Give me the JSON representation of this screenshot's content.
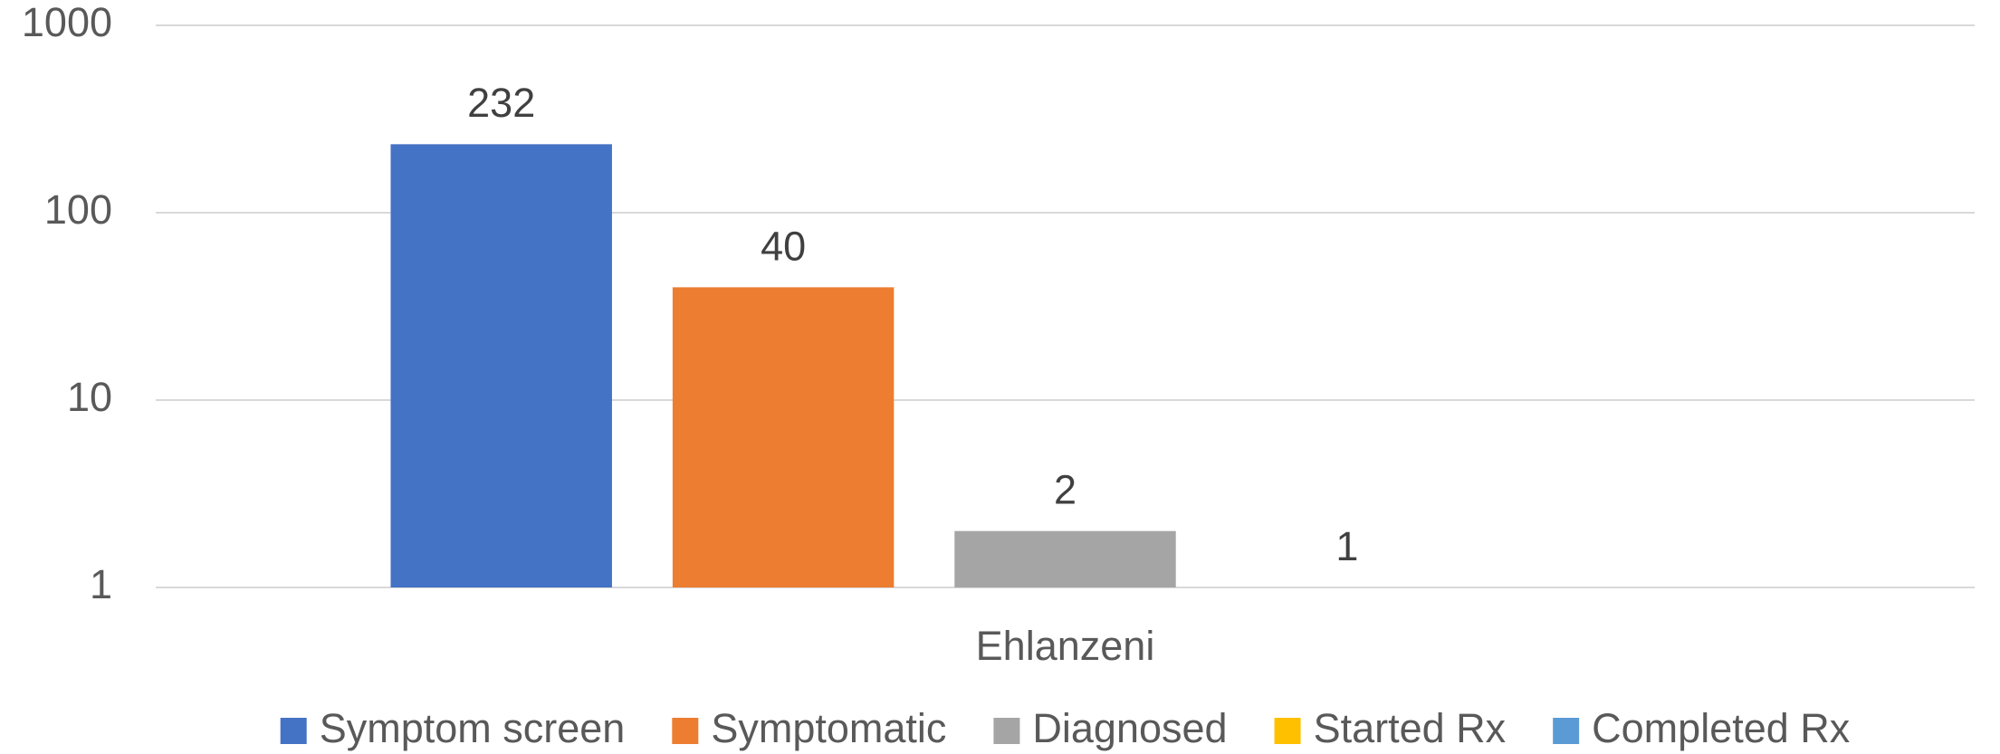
{
  "chart_data": {
    "type": "bar",
    "log_scale": true,
    "grid": true,
    "legend": "bottom",
    "categories": [
      "Ehlanzeni"
    ],
    "series": [
      {
        "name": "Symptom screen",
        "color": "#4472c4",
        "values": [
          232
        ]
      },
      {
        "name": "Symptomatic",
        "color": "#ed7d31",
        "values": [
          40
        ]
      },
      {
        "name": "Diagnosed",
        "color": "#a5a5a5",
        "values": [
          2
        ]
      },
      {
        "name": "Started Rx",
        "color": "#ffc000",
        "values": [
          1
        ]
      },
      {
        "name": "Completed Rx",
        "color": "#5b9bd5",
        "values": [
          null
        ]
      }
    ],
    "ylim": [
      1,
      1000
    ],
    "yticks": [
      1,
      10,
      100,
      1000
    ]
  }
}
